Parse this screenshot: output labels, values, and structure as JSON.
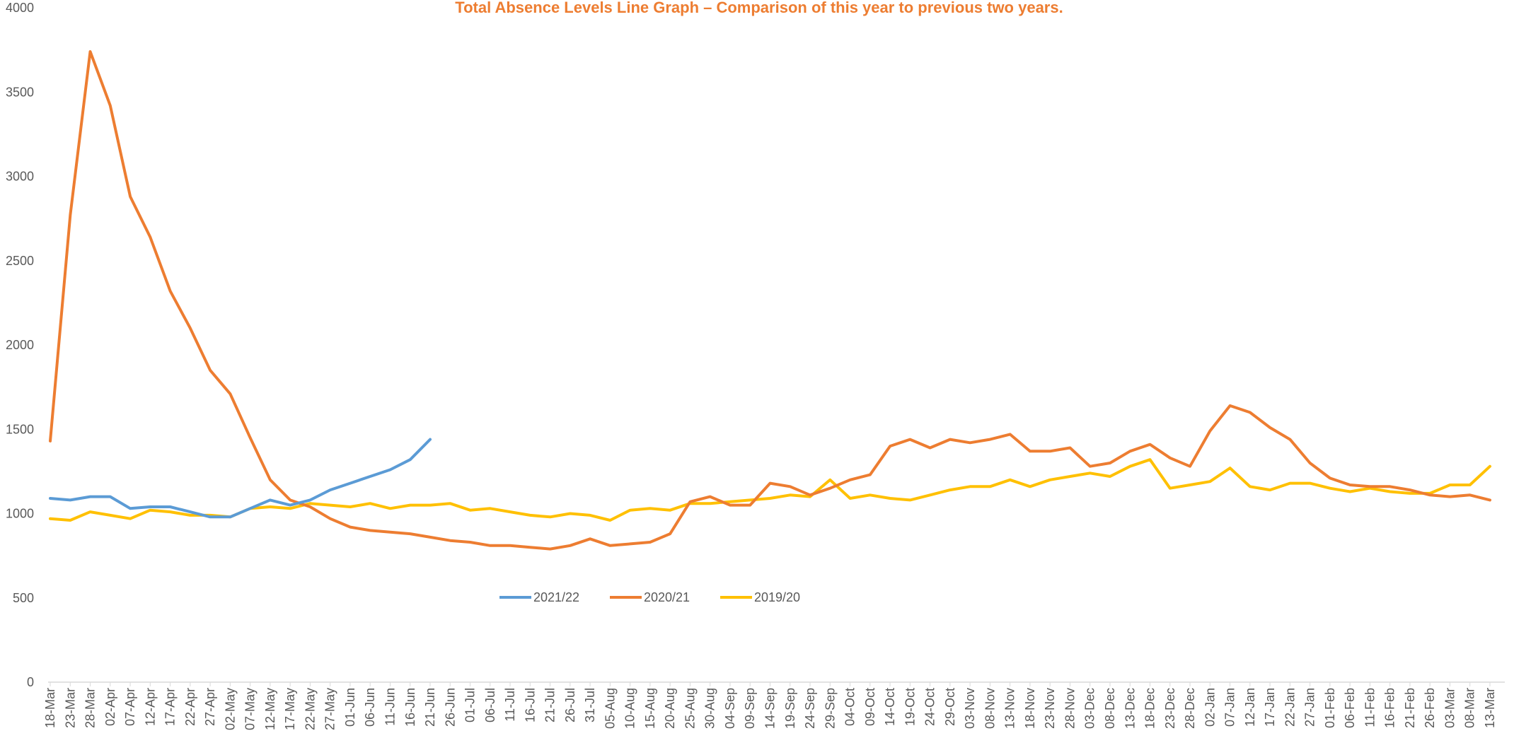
{
  "chart_data": {
    "type": "line",
    "title": "Total Absence Levels Line Graph – Comparison of this year to previous two years.",
    "categories": [
      "18-Mar",
      "23-Mar",
      "28-Mar",
      "02-Apr",
      "07-Apr",
      "12-Apr",
      "17-Apr",
      "22-Apr",
      "27-Apr",
      "02-May",
      "07-May",
      "12-May",
      "17-May",
      "22-May",
      "27-May",
      "01-Jun",
      "06-Jun",
      "11-Jun",
      "16-Jun",
      "21-Jun",
      "26-Jun",
      "01-Jul",
      "06-Jul",
      "11-Jul",
      "16-Jul",
      "21-Jul",
      "26-Jul",
      "31-Jul",
      "05-Aug",
      "10-Aug",
      "15-Aug",
      "20-Aug",
      "25-Aug",
      "30-Aug",
      "04-Sep",
      "09-Sep",
      "14-Sep",
      "19-Sep",
      "24-Sep",
      "29-Sep",
      "04-Oct",
      "09-Oct",
      "14-Oct",
      "19-Oct",
      "24-Oct",
      "29-Oct",
      "03-Nov",
      "08-Nov",
      "13-Nov",
      "18-Nov",
      "23-Nov",
      "28-Nov",
      "03-Dec",
      "08-Dec",
      "13-Dec",
      "18-Dec",
      "23-Dec",
      "28-Dec",
      "02-Jan",
      "07-Jan",
      "12-Jan",
      "17-Jan",
      "22-Jan",
      "27-Jan",
      "01-Feb",
      "06-Feb",
      "11-Feb",
      "16-Feb",
      "21-Feb",
      "26-Feb",
      "03-Mar",
      "08-Mar",
      "13-Mar"
    ],
    "series": [
      {
        "name": "2021/22",
        "color": "#5b9bd5",
        "values": [
          1090,
          1080,
          1100,
          1100,
          1030,
          1040,
          1040,
          1010,
          980,
          980,
          1030,
          1080,
          1050,
          1080,
          1140,
          1180,
          1220,
          1260,
          1320,
          1440,
          null,
          null,
          null,
          null,
          null,
          null,
          null,
          null,
          null,
          null,
          null,
          null,
          null,
          null,
          null,
          null,
          null,
          null,
          null,
          null,
          null,
          null,
          null,
          null,
          null,
          null,
          null,
          null,
          null,
          null,
          null,
          null,
          null,
          null,
          null,
          null,
          null,
          null,
          null,
          null,
          null,
          null,
          null,
          null,
          null,
          null,
          null,
          null,
          null,
          null,
          null,
          null,
          null
        ]
      },
      {
        "name": "2020/21",
        "color": "#ed7d31",
        "values": [
          1430,
          2770,
          3740,
          3420,
          2880,
          2640,
          2320,
          2100,
          1850,
          1710,
          1450,
          1200,
          1080,
          1040,
          970,
          920,
          900,
          890,
          880,
          860,
          840,
          830,
          810,
          810,
          800,
          790,
          810,
          850,
          810,
          820,
          830,
          880,
          1070,
          1100,
          1050,
          1050,
          1180,
          1160,
          1110,
          1150,
          1200,
          1230,
          1400,
          1440,
          1390,
          1440,
          1420,
          1440,
          1470,
          1370,
          1370,
          1390,
          1280,
          1300,
          1370,
          1410,
          1330,
          1280,
          1490,
          1640,
          1600,
          1510,
          1440,
          1300,
          1210,
          1170,
          1160,
          1160,
          1140,
          1110,
          1100,
          1110,
          1080
        ]
      },
      {
        "name": "2019/20",
        "color": "#ffc000",
        "values": [
          970,
          960,
          1010,
          990,
          970,
          1020,
          1010,
          990,
          990,
          980,
          1030,
          1040,
          1030,
          1060,
          1050,
          1040,
          1060,
          1030,
          1050,
          1050,
          1060,
          1020,
          1030,
          1010,
          990,
          980,
          1000,
          990,
          960,
          1020,
          1030,
          1020,
          1060,
          1060,
          1070,
          1080,
          1090,
          1110,
          1100,
          1200,
          1090,
          1110,
          1090,
          1080,
          1110,
          1140,
          1160,
          1160,
          1200,
          1160,
          1200,
          1220,
          1240,
          1220,
          1280,
          1320,
          1150,
          1170,
          1190,
          1270,
          1160,
          1140,
          1180,
          1180,
          1150,
          1130,
          1150,
          1130,
          1120,
          1120,
          1170,
          1170,
          1280
        ]
      }
    ],
    "ylim": [
      0,
      4000
    ],
    "yticks": [
      0,
      500,
      1000,
      1500,
      2000,
      2500,
      3000,
      3500,
      4000
    ]
  }
}
